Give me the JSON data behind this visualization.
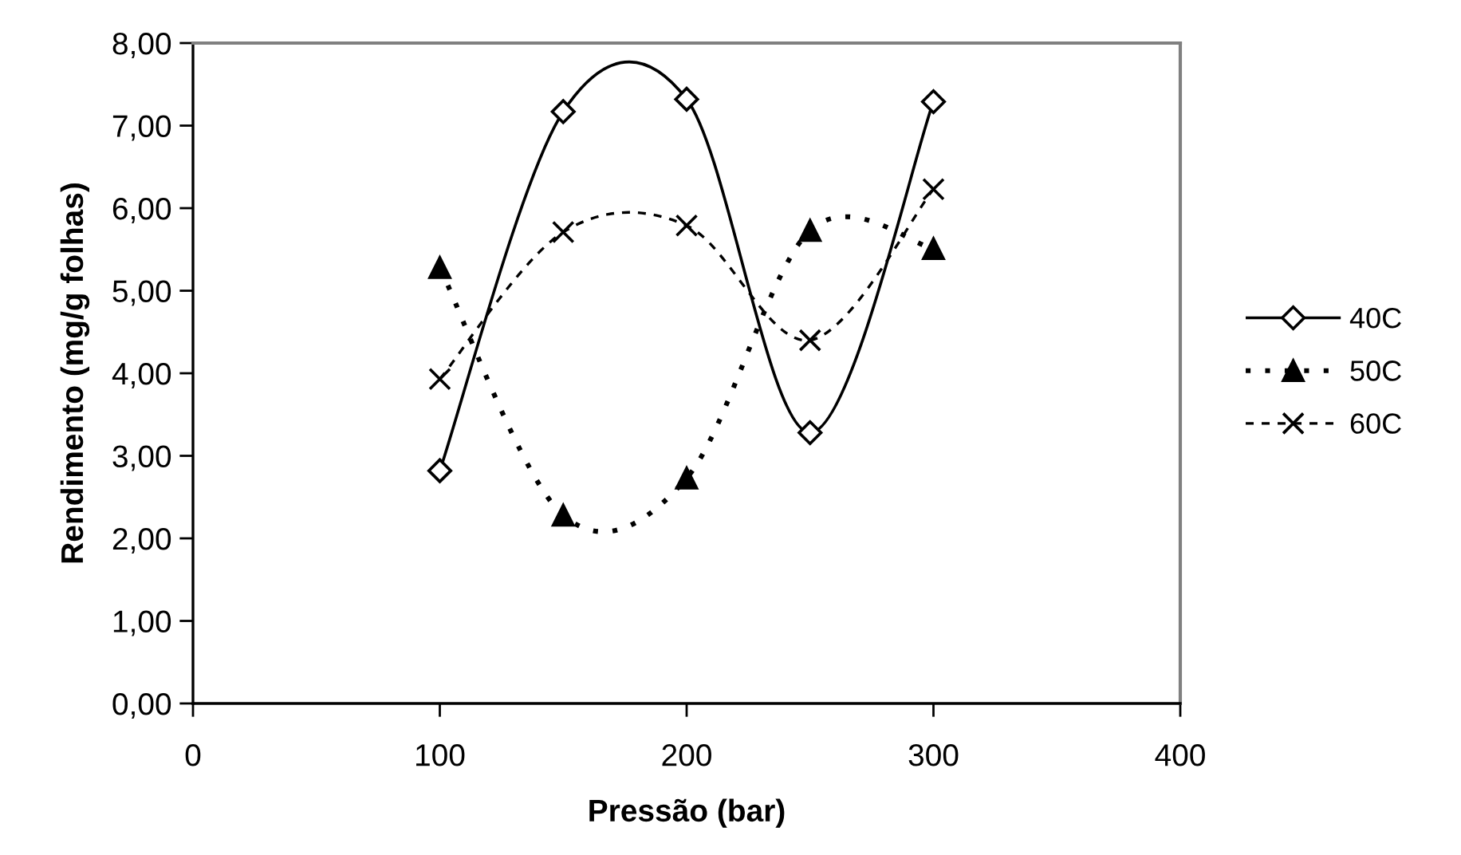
{
  "chart_data": {
    "type": "line",
    "xlabel": "Pressão (bar)",
    "ylabel": "Rendimento (mg/g folhas)",
    "x": [
      100,
      150,
      200,
      250,
      300
    ],
    "series": [
      {
        "name": "40C",
        "color": "#000000",
        "values": [
          2.82,
          7.17,
          7.32,
          3.28,
          7.29
        ],
        "marker": "diamond",
        "line_style": "solid"
      },
      {
        "name": "50C",
        "color": "#000000",
        "values": [
          5.28,
          2.28,
          2.73,
          5.73,
          5.51
        ],
        "marker": "triangle",
        "line_style": "dotted"
      },
      {
        "name": "60C",
        "color": "#000000",
        "values": [
          3.93,
          5.71,
          5.79,
          4.4,
          6.23
        ],
        "marker": "cross",
        "line_style": "dashed"
      }
    ],
    "xlim": [
      0,
      400
    ],
    "xticks": [
      0,
      100,
      200,
      300,
      400
    ],
    "ylim": [
      0,
      8
    ],
    "yticks": [
      {
        "value": 0,
        "label": "0,00"
      },
      {
        "value": 1,
        "label": "1,00"
      },
      {
        "value": 2,
        "label": "2,00"
      },
      {
        "value": 3,
        "label": "3,00"
      },
      {
        "value": 4,
        "label": "4,00"
      },
      {
        "value": 5,
        "label": "5,00"
      },
      {
        "value": 6,
        "label": "6,00"
      },
      {
        "value": 7,
        "label": "7,00"
      },
      {
        "value": 8,
        "label": "8,00"
      }
    ],
    "grid": false,
    "legend": "right"
  }
}
